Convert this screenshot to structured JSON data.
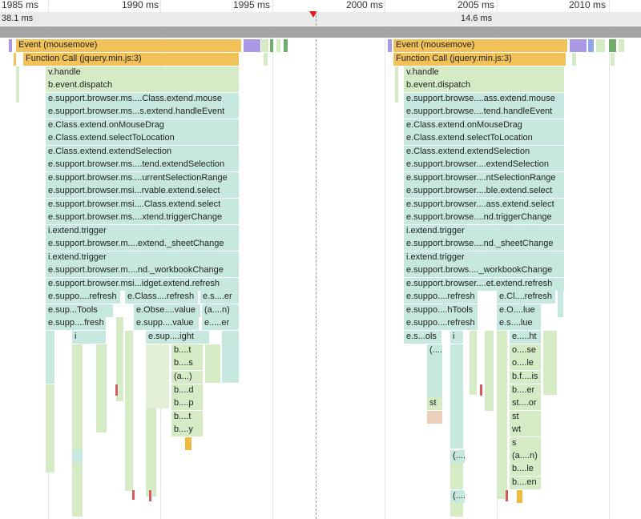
{
  "ruler": {
    "ticks": [
      "1985 ms",
      "1990 ms",
      "1995 ms",
      "2000 ms",
      "2005 ms",
      "2010 ms"
    ]
  },
  "frames": {
    "left": "38.1 ms",
    "right": "14.6 ms"
  },
  "left_stack": {
    "event": "Event (mousemove)",
    "function_call": "Function Call (jquery.min.js:3)",
    "calls": [
      "v.handle",
      "b.event.dispatch",
      "e.support.browser.ms....Class.extend.mouse",
      "e.support.browser.ms...s.extend.handleEvent",
      "e.Class.extend.onMouseDrag",
      "e.Class.extend.selectToLocation",
      "e.Class.extend.extendSelection",
      "e.support.browser.ms....tend.extendSelection",
      "e.support.browser.ms....urrentSelectionRange",
      "e.support.browser.msi...rvable.extend.select",
      "e.support.browser.msi....Class.extend.select",
      "e.support.browser.ms....xtend.triggerChange",
      "i.extend.trigger",
      "e.support.browser.m....extend._sheetChange",
      "i.extend.trigger",
      "e.support.browser.m....nd._workbookChange",
      "e.support.browser.msi...idget.extend.refresh"
    ],
    "row18": [
      "e.suppo....refresh",
      "e.Class....refresh",
      "e.s....er"
    ],
    "row19": [
      "e.sup...Tools",
      "e.Obse....value",
      "(a....n)"
    ],
    "row20": [
      "e.supp....fresh",
      "e.supp....value",
      "e.....er"
    ],
    "row21": [
      "i",
      "e.sup....ight"
    ],
    "tail": [
      "b....t",
      "b....s",
      "(a...)",
      "b....d",
      "b....p",
      "b....t",
      "b....y"
    ]
  },
  "right_stack": {
    "event": "Event (mousemove)",
    "function_call": "Function Call (jquery.min.js:3)",
    "calls": [
      "v.handle",
      "b.event.dispatch",
      "e.support.browse....ass.extend.mouse",
      "e.support.browse....tend.handleEvent",
      "e.Class.extend.onMouseDrag",
      "e.Class.extend.selectToLocation",
      "e.Class.extend.extendSelection",
      "e.support.browser....extendSelection",
      "e.support.browser....ntSelectionRange",
      "e.support.browser....ble.extend.select",
      "e.support.browser....ass.extend.select",
      "e.support.browse....nd.triggerChange",
      "i.extend.trigger",
      "e.support.browse....nd._sheetChange",
      "i.extend.trigger",
      "e.support.brows...._workbookChange",
      "e.support.browser....et.extend.refresh"
    ],
    "row18": [
      "e.suppo....refresh",
      "e.Cl....refresh"
    ],
    "row19": [
      "e.suppo....hTools",
      "e.O....lue"
    ],
    "row20": [
      "e.suppo....refresh",
      "e.s....lue"
    ],
    "row21": [
      "e.s...ols",
      "i",
      "e.....ht"
    ],
    "col_mid": [
      "(....",
      "st",
      "(....",
      "(...."
    ],
    "tail": [
      "o....se",
      "o....le",
      "b.f....is",
      "b....er",
      "st....or",
      "st",
      "wt",
      "s",
      "(a....n)",
      "b....le",
      "b....en"
    ]
  }
}
